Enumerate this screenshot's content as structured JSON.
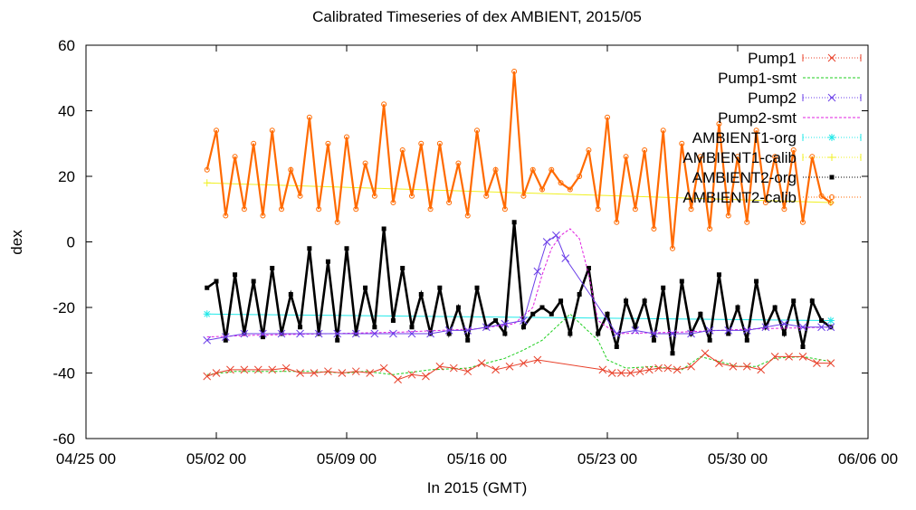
{
  "chart_data": {
    "type": "line",
    "title": "Calibrated Timeseries of dex AMBIENT, 2015/05",
    "xlabel": "In 2015 (GMT)",
    "ylabel": "dex",
    "ylim": [
      -60,
      60
    ],
    "xlim": [
      "2015-04-25 00:00",
      "2015-06-06 00:00"
    ],
    "x_ticks": [
      "04/25 00",
      "05/02 00",
      "05/09 00",
      "05/16 00",
      "05/23 00",
      "05/30 00",
      "06/06 00"
    ],
    "y_ticks": [
      "-60",
      "-40",
      "-20",
      "0",
      "20",
      "40",
      "60"
    ],
    "grid": false,
    "legend_position": "top-right",
    "series": [
      {
        "name": "Pump1",
        "color": "#e8402a",
        "marker": "x",
        "x": [
          "2015-05-01 12:00",
          "2015-05-02 00:00",
          "2015-05-02 18:00",
          "2015-05-03 12:00",
          "2015-05-04 06:00",
          "2015-05-05 00:00",
          "2015-05-05 18:00",
          "2015-05-06 12:00",
          "2015-05-07 06:00",
          "2015-05-08 00:00",
          "2015-05-08 18:00",
          "2015-05-09 12:00",
          "2015-05-10 06:00",
          "2015-05-11 00:00",
          "2015-05-11 18:00",
          "2015-05-12 12:00",
          "2015-05-13 06:00",
          "2015-05-14 00:00",
          "2015-05-14 18:00",
          "2015-05-15 12:00",
          "2015-05-16 06:00",
          "2015-05-17 00:00",
          "2015-05-17 18:00",
          "2015-05-18 12:00",
          "2015-05-19 06:00",
          "2015-05-22 18:00",
          "2015-05-23 06:00",
          "2015-05-23 18:00",
          "2015-05-24 06:00",
          "2015-05-24 18:00",
          "2015-05-25 06:00",
          "2015-05-25 18:00",
          "2015-05-26 06:00",
          "2015-05-26 18:00",
          "2015-05-27 12:00",
          "2015-05-28 06:00",
          "2015-05-29 00:00",
          "2015-05-29 18:00",
          "2015-05-30 12:00",
          "2015-05-31 06:00",
          "2015-06-01 00:00",
          "2015-06-01 18:00",
          "2015-06-02 12:00",
          "2015-06-03 06:00",
          "2015-06-04 00:00"
        ],
        "values": [
          -41,
          -40,
          -39,
          -39,
          -39,
          -39,
          -38.5,
          -40,
          -40,
          -39.5,
          -40,
          -39.5,
          -40,
          -38.5,
          -42,
          -40.5,
          -41,
          -38,
          -38.5,
          -39.5,
          -37,
          -39,
          -38,
          -37,
          -36,
          -39,
          -40,
          -40,
          -40,
          -39.5,
          -39,
          -38.5,
          -38.5,
          -39,
          -38,
          -34,
          -37,
          -38,
          -38,
          -39,
          -35,
          -35,
          -35,
          -37,
          -37
        ]
      },
      {
        "name": "Pump1-smt",
        "color": "#1fcf1f",
        "x": [
          "2015-05-01 12:00",
          "2015-05-03 00:00",
          "2015-05-05 00:00",
          "2015-05-07 00:00",
          "2015-05-09 00:00",
          "2015-05-10 00:00",
          "2015-05-11 12:00",
          "2015-05-13 12:00",
          "2015-05-15 12:00",
          "2015-05-16 12:00",
          "2015-05-17 12:00",
          "2015-05-18 12:00",
          "2015-05-19 12:00",
          "2015-05-20 06:00",
          "2015-05-21 00:00",
          "2015-05-21 18:00",
          "2015-05-22 12:00",
          "2015-05-23 00:00",
          "2015-05-24 00:00",
          "2015-05-25 12:00",
          "2015-05-27 00:00",
          "2015-05-28 00:00",
          "2015-05-29 00:00",
          "2015-05-30 00:00",
          "2015-05-31 00:00",
          "2015-06-01 00:00",
          "2015-06-02 12:00",
          "2015-06-04 00:00"
        ],
        "values": [
          -40.5,
          -39.5,
          -39.5,
          -39.5,
          -40,
          -39.5,
          -40.5,
          -39,
          -38.5,
          -37,
          -35.5,
          -33,
          -30,
          -26,
          -22,
          -26,
          -30,
          -36,
          -38.5,
          -38,
          -39,
          -35,
          -36.5,
          -38,
          -38,
          -35.5,
          -35,
          -36.5
        ]
      },
      {
        "name": "Pump2",
        "color": "#6a3ee8",
        "marker": "x",
        "x": [
          "2015-05-01 12:00",
          "2015-05-02 12:00",
          "2015-05-03 12:00",
          "2015-05-04 12:00",
          "2015-05-05 12:00",
          "2015-05-06 12:00",
          "2015-05-07 12:00",
          "2015-05-08 12:00",
          "2015-05-09 12:00",
          "2015-05-10 12:00",
          "2015-05-11 12:00",
          "2015-05-12 12:00",
          "2015-05-13 12:00",
          "2015-05-14 12:00",
          "2015-05-15 12:00",
          "2015-05-16 12:00",
          "2015-05-17 12:00",
          "2015-05-18 12:00",
          "2015-05-19 06:00",
          "2015-05-19 18:00",
          "2015-05-20 06:00",
          "2015-05-20 18:00",
          "2015-05-23 12:00",
          "2015-05-24 12:00",
          "2015-05-25 12:00",
          "2015-05-26 12:00",
          "2015-05-27 12:00",
          "2015-05-28 12:00",
          "2015-05-29 12:00",
          "2015-05-30 12:00",
          "2015-05-31 12:00",
          "2015-06-01 12:00",
          "2015-06-02 12:00",
          "2015-06-03 12:00",
          "2015-06-04 00:00"
        ],
        "values": [
          -30,
          -29,
          -28,
          -28,
          -28,
          -28,
          -28,
          -28,
          -28,
          -28,
          -28,
          -28,
          -28,
          -27,
          -27,
          -26,
          -25,
          -24,
          -9,
          0,
          2,
          -5,
          -28,
          -27,
          -28,
          -28,
          -28,
          -27,
          -27,
          -27,
          -26,
          -25,
          -26,
          -26,
          -26
        ]
      },
      {
        "name": "Pump2-smt",
        "color": "#e020e0",
        "x": [
          "2015-05-01 12:00",
          "2015-05-04 00:00",
          "2015-05-08 00:00",
          "2015-05-12 00:00",
          "2015-05-16 00:00",
          "2015-05-18 00:00",
          "2015-05-19 00:00",
          "2015-05-19 12:00",
          "2015-05-20 00:00",
          "2015-05-20 12:00",
          "2015-05-21 00:00",
          "2015-05-21 12:00",
          "2015-05-22 00:00",
          "2015-05-22 12:00",
          "2015-05-23 12:00",
          "2015-05-27 00:00",
          "2015-05-31 00:00",
          "2015-06-04 00:00"
        ],
        "values": [
          -29,
          -28.5,
          -28,
          -27.5,
          -26.5,
          -25,
          -20,
          -10,
          -2,
          2,
          4,
          1,
          -10,
          -24,
          -28,
          -27.5,
          -26.5,
          -26
        ]
      },
      {
        "name": "AMBIENT1-org",
        "color": "#20e8e8",
        "marker": "*",
        "x": [
          "2015-05-01 12:00",
          "2015-06-04 00:00"
        ],
        "values": [
          -22,
          -24
        ]
      },
      {
        "name": "AMBIENT1-calib",
        "color": "#f0f020",
        "marker": "+",
        "x": [
          "2015-05-01 12:00",
          "2015-06-04 00:00"
        ],
        "values": [
          18,
          12
        ]
      },
      {
        "name": "AMBIENT2-org",
        "color": "#000000",
        "marker": "square",
        "x": [
          "2015-05-01 12:00",
          "2015-05-02 00:00",
          "2015-05-02 12:00",
          "2015-05-03 00:00",
          "2015-05-03 12:00",
          "2015-05-04 00:00",
          "2015-05-04 12:00",
          "2015-05-05 00:00",
          "2015-05-05 12:00",
          "2015-05-06 00:00",
          "2015-05-06 12:00",
          "2015-05-07 00:00",
          "2015-05-07 12:00",
          "2015-05-08 00:00",
          "2015-05-08 12:00",
          "2015-05-09 00:00",
          "2015-05-09 12:00",
          "2015-05-10 00:00",
          "2015-05-10 12:00",
          "2015-05-11 00:00",
          "2015-05-11 12:00",
          "2015-05-12 00:00",
          "2015-05-12 12:00",
          "2015-05-13 00:00",
          "2015-05-13 12:00",
          "2015-05-14 00:00",
          "2015-05-14 12:00",
          "2015-05-15 00:00",
          "2015-05-15 12:00",
          "2015-05-16 00:00",
          "2015-05-16 12:00",
          "2015-05-17 00:00",
          "2015-05-17 12:00",
          "2015-05-18 00:00",
          "2015-05-18 12:00",
          "2015-05-19 00:00",
          "2015-05-19 12:00",
          "2015-05-20 00:00",
          "2015-05-20 12:00",
          "2015-05-21 00:00",
          "2015-05-21 12:00",
          "2015-05-22 00:00",
          "2015-05-22 12:00",
          "2015-05-23 00:00",
          "2015-05-23 12:00",
          "2015-05-24 00:00",
          "2015-05-24 12:00",
          "2015-05-25 00:00",
          "2015-05-25 12:00",
          "2015-05-26 00:00",
          "2015-05-26 12:00",
          "2015-05-27 00:00",
          "2015-05-27 12:00",
          "2015-05-28 00:00",
          "2015-05-28 12:00",
          "2015-05-29 00:00",
          "2015-05-29 12:00",
          "2015-05-30 00:00",
          "2015-05-30 12:00",
          "2015-05-31 00:00",
          "2015-05-31 12:00",
          "2015-06-01 00:00",
          "2015-06-01 12:00",
          "2015-06-02 00:00",
          "2015-06-02 12:00",
          "2015-06-03 00:00",
          "2015-06-03 12:00",
          "2015-06-04 00:00"
        ],
        "values": [
          -14,
          -12,
          -30,
          -10,
          -28,
          -12,
          -29,
          -8,
          -28,
          -16,
          -26,
          -2,
          -28,
          -6,
          -30,
          -2,
          -28,
          -14,
          -26,
          4,
          -24,
          -8,
          -26,
          -16,
          -28,
          -14,
          -28,
          -20,
          -30,
          -14,
          -26,
          -24,
          -28,
          6,
          -26,
          -22,
          -20,
          -22,
          -18,
          -28,
          -16,
          -8,
          -28,
          -22,
          -32,
          -18,
          -26,
          -18,
          -30,
          -14,
          -34,
          -12,
          -28,
          -22,
          -30,
          -10,
          -28,
          -20,
          -30,
          -12,
          -26,
          -20,
          -28,
          -18,
          -32,
          -18,
          -24,
          -26
        ]
      },
      {
        "name": "AMBIENT2-calib",
        "color": "#ff6a00",
        "marker": "o",
        "x": [
          "2015-05-01 12:00",
          "2015-05-02 00:00",
          "2015-05-02 12:00",
          "2015-05-03 00:00",
          "2015-05-03 12:00",
          "2015-05-04 00:00",
          "2015-05-04 12:00",
          "2015-05-05 00:00",
          "2015-05-05 12:00",
          "2015-05-06 00:00",
          "2015-05-06 12:00",
          "2015-05-07 00:00",
          "2015-05-07 12:00",
          "2015-05-08 00:00",
          "2015-05-08 12:00",
          "2015-05-09 00:00",
          "2015-05-09 12:00",
          "2015-05-10 00:00",
          "2015-05-10 12:00",
          "2015-05-11 00:00",
          "2015-05-11 12:00",
          "2015-05-12 00:00",
          "2015-05-12 12:00",
          "2015-05-13 00:00",
          "2015-05-13 12:00",
          "2015-05-14 00:00",
          "2015-05-14 12:00",
          "2015-05-15 00:00",
          "2015-05-15 12:00",
          "2015-05-16 00:00",
          "2015-05-16 12:00",
          "2015-05-17 00:00",
          "2015-05-17 12:00",
          "2015-05-18 00:00",
          "2015-05-18 12:00",
          "2015-05-19 00:00",
          "2015-05-19 12:00",
          "2015-05-20 00:00",
          "2015-05-20 12:00",
          "2015-05-21 00:00",
          "2015-05-21 12:00",
          "2015-05-22 00:00",
          "2015-05-22 12:00",
          "2015-05-23 00:00",
          "2015-05-23 12:00",
          "2015-05-24 00:00",
          "2015-05-24 12:00",
          "2015-05-25 00:00",
          "2015-05-25 12:00",
          "2015-05-26 00:00",
          "2015-05-26 12:00",
          "2015-05-27 00:00",
          "2015-05-27 12:00",
          "2015-05-28 00:00",
          "2015-05-28 12:00",
          "2015-05-29 00:00",
          "2015-05-29 12:00",
          "2015-05-30 00:00",
          "2015-05-30 12:00",
          "2015-05-31 00:00",
          "2015-05-31 12:00",
          "2015-06-01 00:00",
          "2015-06-01 12:00",
          "2015-06-02 00:00",
          "2015-06-02 12:00",
          "2015-06-03 00:00",
          "2015-06-03 12:00",
          "2015-06-04 00:00"
        ],
        "values": [
          22,
          34,
          8,
          26,
          10,
          30,
          8,
          34,
          10,
          22,
          14,
          38,
          10,
          30,
          6,
          32,
          10,
          24,
          14,
          42,
          12,
          28,
          14,
          30,
          10,
          30,
          12,
          24,
          8,
          34,
          14,
          22,
          10,
          52,
          14,
          22,
          16,
          22,
          18,
          16,
          20,
          28,
          10,
          38,
          6,
          26,
          10,
          28,
          4,
          34,
          -2,
          30,
          10,
          26,
          4,
          36,
          8,
          26,
          6,
          34,
          12,
          26,
          10,
          28,
          6,
          26,
          14,
          12
        ]
      }
    ]
  }
}
